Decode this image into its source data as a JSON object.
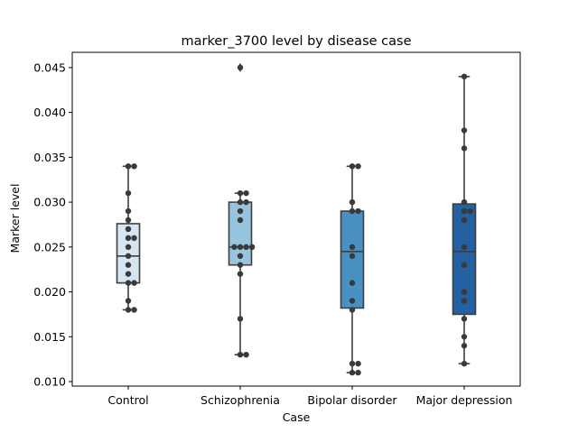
{
  "chart_data": {
    "type": "box",
    "title": "marker_3700 level by disease case",
    "xlabel": "Case",
    "ylabel": "Marker level",
    "categories": [
      "Control",
      "Schizophrenia",
      "Bipolar disorder",
      "Major depression"
    ],
    "ylim": [
      0.0095,
      0.0467
    ],
    "yticks": [
      0.01,
      0.015,
      0.02,
      0.025,
      0.03,
      0.035,
      0.04,
      0.045
    ],
    "ytick_labels": [
      "0.010",
      "0.015",
      "0.020",
      "0.025",
      "0.030",
      "0.035",
      "0.040",
      "0.045"
    ],
    "colors": [
      "#d6e5f2",
      "#97c4df",
      "#4a91c3",
      "#2361a3"
    ],
    "boxes": [
      {
        "q1": 0.021,
        "median": 0.024,
        "q3": 0.0276,
        "whisker_low": 0.018,
        "whisker_high": 0.034,
        "outliers": []
      },
      {
        "q1": 0.023,
        "median": 0.025,
        "q3": 0.03,
        "whisker_low": 0.013,
        "whisker_high": 0.031,
        "outliers": [
          0.045
        ]
      },
      {
        "q1": 0.0182,
        "median": 0.0245,
        "q3": 0.029,
        "whisker_low": 0.011,
        "whisker_high": 0.034,
        "outliers": []
      },
      {
        "q1": 0.0175,
        "median": 0.0245,
        "q3": 0.0298,
        "whisker_low": 0.012,
        "whisker_high": 0.044,
        "outliers": []
      }
    ],
    "points": [
      [
        0.034,
        0.034,
        0.031,
        0.029,
        0.028,
        0.027,
        0.026,
        0.026,
        0.025,
        0.024,
        0.023,
        0.022,
        0.021,
        0.021,
        0.019,
        0.018,
        0.018
      ],
      [
        0.045,
        0.031,
        0.031,
        0.03,
        0.03,
        0.029,
        0.028,
        0.025,
        0.025,
        0.025,
        0.025,
        0.024,
        0.023,
        0.022,
        0.017,
        0.013,
        0.013
      ],
      [
        0.034,
        0.034,
        0.03,
        0.029,
        0.029,
        0.025,
        0.024,
        0.021,
        0.019,
        0.018,
        0.012,
        0.012,
        0.011,
        0.011
      ],
      [
        0.044,
        0.038,
        0.036,
        0.03,
        0.029,
        0.029,
        0.028,
        0.025,
        0.023,
        0.02,
        0.019,
        0.017,
        0.015,
        0.014,
        0.012
      ]
    ]
  }
}
